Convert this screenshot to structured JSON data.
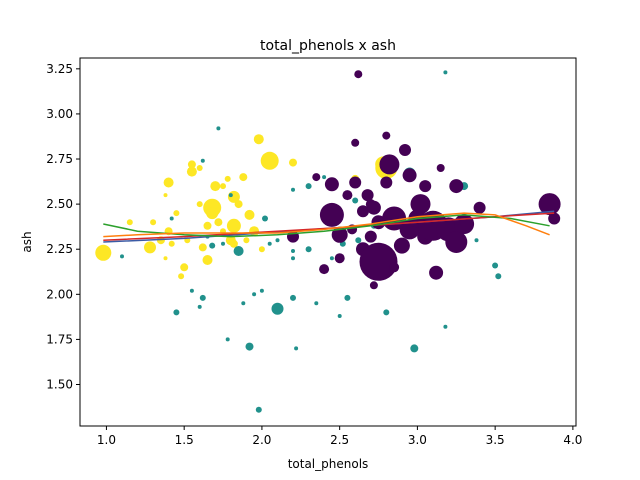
{
  "chart_data": {
    "type": "scatter",
    "title": "total_phenols x ash",
    "xlabel": "total_phenols",
    "ylabel": "ash",
    "xlim": [
      0.83,
      4.02
    ],
    "ylim": [
      1.27,
      3.31
    ],
    "xticks": [
      {
        "value": 1.0,
        "label": "1.0"
      },
      {
        "value": 1.5,
        "label": "1.5"
      },
      {
        "value": 2.0,
        "label": "2.0"
      },
      {
        "value": 2.5,
        "label": "2.5"
      },
      {
        "value": 3.0,
        "label": "3.0"
      },
      {
        "value": 3.5,
        "label": "3.5"
      },
      {
        "value": 4.0,
        "label": "4.0"
      }
    ],
    "yticks": [
      {
        "value": 1.5,
        "label": "1.50"
      },
      {
        "value": 1.75,
        "label": "1.75"
      },
      {
        "value": 2.0,
        "label": "2.00"
      },
      {
        "value": 2.25,
        "label": "2.25"
      },
      {
        "value": 2.5,
        "label": "2.50"
      },
      {
        "value": 2.75,
        "label": "2.75"
      },
      {
        "value": 3.0,
        "label": "3.00"
      },
      {
        "value": 3.25,
        "label": "3.25"
      }
    ],
    "grid": false,
    "colors": {
      "purple": "#440154",
      "teal": "#21918c",
      "yellow": "#fde725"
    },
    "series": [
      {
        "color": "#fde725",
        "points": [
          [
            0.98,
            2.23,
            8
          ],
          [
            1.15,
            2.4,
            3
          ],
          [
            1.28,
            2.26,
            6
          ],
          [
            1.3,
            2.4,
            3
          ],
          [
            1.35,
            2.3,
            4
          ],
          [
            1.38,
            2.55,
            2
          ],
          [
            1.38,
            2.2,
            2
          ],
          [
            1.4,
            2.62,
            5
          ],
          [
            1.4,
            2.35,
            4
          ],
          [
            1.42,
            2.28,
            3
          ],
          [
            1.48,
            2.1,
            3
          ],
          [
            1.5,
            2.15,
            4
          ],
          [
            1.52,
            2.3,
            3
          ],
          [
            1.55,
            2.68,
            5
          ],
          [
            1.55,
            2.72,
            4
          ],
          [
            1.6,
            2.7,
            3
          ],
          [
            1.62,
            2.26,
            4
          ],
          [
            1.65,
            2.19,
            5
          ],
          [
            1.65,
            2.38,
            4
          ],
          [
            1.68,
            2.48,
            9
          ],
          [
            1.68,
            2.45,
            6
          ],
          [
            1.7,
            2.6,
            5
          ],
          [
            1.72,
            2.4,
            4
          ],
          [
            1.75,
            2.35,
            3
          ],
          [
            1.78,
            2.64,
            3
          ],
          [
            1.8,
            2.3,
            5
          ],
          [
            1.82,
            2.38,
            7
          ],
          [
            1.82,
            2.28,
            4
          ],
          [
            1.82,
            2.54,
            6
          ],
          [
            1.85,
            2.5,
            4
          ],
          [
            1.88,
            2.65,
            4
          ],
          [
            1.92,
            2.44,
            5
          ],
          [
            1.95,
            2.35,
            5
          ],
          [
            1.98,
            2.86,
            5
          ],
          [
            2.05,
            2.74,
            9
          ],
          [
            2.2,
            2.73,
            4
          ],
          [
            2.6,
            2.61,
            4
          ],
          [
            2.6,
            2.64,
            4
          ],
          [
            2.8,
            2.7,
            11
          ],
          [
            2.78,
            2.72,
            8
          ],
          [
            1.6,
            2.5,
            3
          ],
          [
            1.45,
            2.45,
            3
          ],
          [
            1.75,
            2.6,
            3
          ],
          [
            1.9,
            2.3,
            3
          ],
          [
            2.0,
            2.25,
            3
          ]
        ]
      },
      {
        "color": "#21918c",
        "points": [
          [
            1.1,
            2.21,
            2
          ],
          [
            1.42,
            2.42,
            2
          ],
          [
            1.45,
            1.9,
            3
          ],
          [
            1.55,
            2.02,
            2
          ],
          [
            1.6,
            1.93,
            2
          ],
          [
            1.62,
            1.98,
            3
          ],
          [
            1.62,
            2.74,
            2
          ],
          [
            1.65,
            2.32,
            2
          ],
          [
            1.68,
            2.27,
            3
          ],
          [
            1.72,
            2.92,
            2
          ],
          [
            1.75,
            2.28,
            2
          ],
          [
            1.78,
            1.75,
            2
          ],
          [
            1.85,
            2.24,
            5
          ],
          [
            1.88,
            1.95,
            2
          ],
          [
            1.92,
            1.71,
            4
          ],
          [
            1.95,
            2.0,
            2
          ],
          [
            1.98,
            1.36,
            3
          ],
          [
            2.0,
            2.02,
            2
          ],
          [
            2.02,
            2.42,
            3
          ],
          [
            2.05,
            2.28,
            2
          ],
          [
            2.1,
            1.92,
            6
          ],
          [
            2.2,
            2.58,
            2
          ],
          [
            2.2,
            2.2,
            2
          ],
          [
            2.2,
            2.24,
            2
          ],
          [
            2.2,
            1.98,
            3
          ],
          [
            2.22,
            1.7,
            2
          ],
          [
            2.3,
            2.6,
            3
          ],
          [
            2.35,
            1.95,
            2
          ],
          [
            2.4,
            2.65,
            2
          ],
          [
            2.45,
            2.2,
            2
          ],
          [
            2.5,
            1.88,
            2
          ],
          [
            2.52,
            2.28,
            3
          ],
          [
            2.55,
            1.98,
            3
          ],
          [
            2.6,
            2.52,
            3
          ],
          [
            2.62,
            2.3,
            3
          ],
          [
            2.72,
            2.38,
            3
          ],
          [
            2.75,
            2.25,
            3
          ],
          [
            2.8,
            1.9,
            3
          ],
          [
            2.95,
            2.67,
            6
          ],
          [
            2.98,
            1.7,
            4
          ],
          [
            3.18,
            3.23,
            2
          ],
          [
            3.18,
            1.82,
            2
          ],
          [
            3.3,
            2.6,
            4
          ],
          [
            3.38,
            2.3,
            2
          ],
          [
            3.5,
            2.16,
            3
          ],
          [
            3.52,
            2.1,
            3
          ],
          [
            2.3,
            2.25,
            3
          ],
          [
            1.8,
            2.55,
            2
          ],
          [
            2.1,
            2.3,
            2
          ]
        ]
      },
      {
        "color": "#440154",
        "points": [
          [
            2.2,
            2.32,
            6
          ],
          [
            2.35,
            2.65,
            4
          ],
          [
            2.4,
            2.14,
            5
          ],
          [
            2.45,
            2.61,
            7
          ],
          [
            2.45,
            2.44,
            12
          ],
          [
            2.5,
            2.33,
            8
          ],
          [
            2.55,
            2.55,
            5
          ],
          [
            2.6,
            2.84,
            4
          ],
          [
            2.6,
            2.62,
            6
          ],
          [
            2.62,
            3.22,
            4
          ],
          [
            2.65,
            2.46,
            6
          ],
          [
            2.65,
            2.25,
            7
          ],
          [
            2.7,
            2.5,
            5
          ],
          [
            2.72,
            2.05,
            4
          ],
          [
            2.75,
            2.18,
            19
          ],
          [
            2.75,
            2.4,
            7
          ],
          [
            2.8,
            2.88,
            4
          ],
          [
            2.8,
            2.62,
            6
          ],
          [
            2.82,
            2.72,
            10
          ],
          [
            2.85,
            2.42,
            12
          ],
          [
            2.9,
            2.27,
            8
          ],
          [
            2.92,
            2.8,
            6
          ],
          [
            2.95,
            2.36,
            10
          ],
          [
            2.95,
            2.66,
            7
          ],
          [
            3.0,
            2.42,
            9
          ],
          [
            3.02,
            2.5,
            10
          ],
          [
            3.05,
            2.32,
            8
          ],
          [
            3.1,
            2.38,
            15
          ],
          [
            3.12,
            2.12,
            7
          ],
          [
            3.15,
            2.7,
            4
          ],
          [
            3.2,
            2.36,
            12
          ],
          [
            3.25,
            2.29,
            11
          ],
          [
            3.25,
            2.6,
            7
          ],
          [
            3.3,
            2.39,
            10
          ],
          [
            3.4,
            2.48,
            6
          ],
          [
            3.85,
            2.5,
            11
          ],
          [
            3.88,
            2.42,
            6
          ],
          [
            2.58,
            2.36,
            5
          ],
          [
            2.7,
            2.32,
            6
          ],
          [
            2.68,
            2.55,
            6
          ],
          [
            2.85,
            2.15,
            5
          ],
          [
            3.05,
            2.6,
            6
          ],
          [
            2.5,
            2.2,
            5
          ],
          [
            2.72,
            2.48,
            7
          ]
        ]
      }
    ],
    "fit_lines": [
      {
        "color": "#3b5ba5",
        "x": [
          0.98,
          1.5,
          2.0,
          2.5,
          3.0,
          3.5,
          3.88
        ],
        "y": [
          2.29,
          2.31,
          2.34,
          2.37,
          2.4,
          2.43,
          2.46
        ]
      },
      {
        "color": "#d62728",
        "x": [
          0.98,
          1.5,
          2.0,
          2.5,
          3.0,
          3.5,
          3.88
        ],
        "y": [
          2.3,
          2.32,
          2.345,
          2.37,
          2.4,
          2.43,
          2.45
        ]
      },
      {
        "color": "#2ca02c",
        "x": [
          0.98,
          1.2,
          1.5,
          1.8,
          2.1,
          2.4,
          2.7,
          3.0,
          3.3,
          3.6,
          3.85
        ],
        "y": [
          2.39,
          2.35,
          2.33,
          2.32,
          2.33,
          2.35,
          2.38,
          2.42,
          2.44,
          2.42,
          2.38
        ]
      },
      {
        "color": "#ff7f0e",
        "x": [
          0.98,
          1.2,
          1.5,
          1.8,
          2.1,
          2.4,
          2.7,
          3.0,
          3.3,
          3.5,
          3.7,
          3.85
        ],
        "y": [
          2.32,
          2.33,
          2.34,
          2.34,
          2.34,
          2.36,
          2.39,
          2.43,
          2.45,
          2.44,
          2.38,
          2.33
        ]
      }
    ]
  }
}
